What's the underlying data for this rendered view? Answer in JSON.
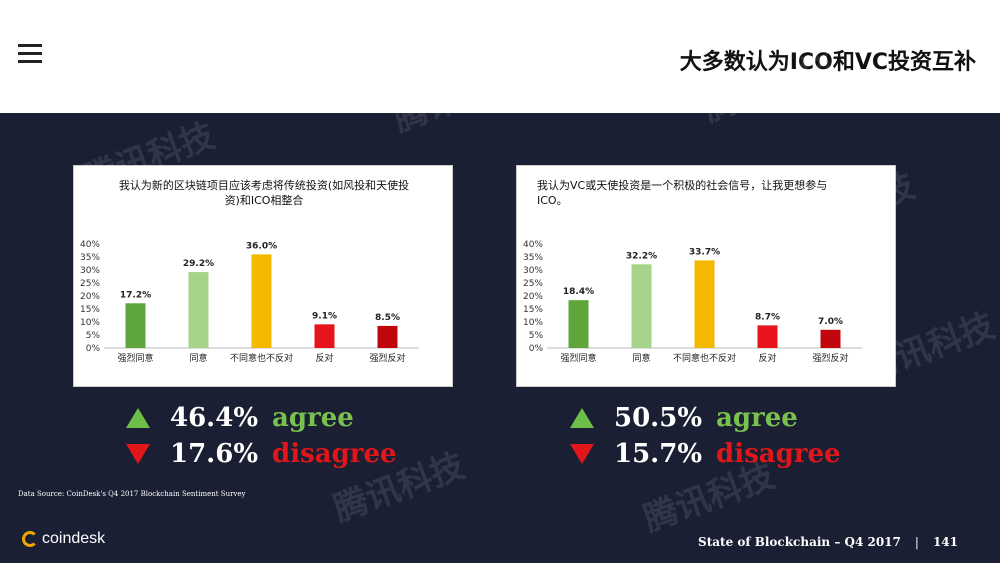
{
  "header": {
    "menu_icon": "menu-icon",
    "title": "大多数认为ICO和VC投资互补"
  },
  "chart_data": [
    {
      "type": "bar",
      "title": "我认为新的区块链项目应该考虑将传统投资(如风投和天使投资)和ICO相整合",
      "categories": [
        "强烈同意",
        "同意",
        "不同意也不反对",
        "反对",
        "强烈反对"
      ],
      "values": [
        17.2,
        29.2,
        36.0,
        9.1,
        8.5
      ],
      "value_labels": [
        "17.2%",
        "29.2%",
        "36.0%",
        "9.1%",
        "8.5%"
      ],
      "colors": [
        "#5ea53b",
        "#a6d38a",
        "#f5b800",
        "#e8141b",
        "#c0060c"
      ],
      "yticks": [
        "0%",
        "5%",
        "10%",
        "15%",
        "20%",
        "25%",
        "30%",
        "35%",
        "40%"
      ],
      "ylim": [
        0,
        40
      ],
      "grid": false
    },
    {
      "type": "bar",
      "title": "我认为VC或天使投资是一个积极的社会信号，让我更想参与ICO。",
      "categories": [
        "强烈同意",
        "同意",
        "不同意也不反对",
        "反对",
        "强烈反对"
      ],
      "values": [
        18.4,
        32.2,
        33.7,
        8.7,
        7.0
      ],
      "value_labels": [
        "18.4%",
        "32.2%",
        "33.7%",
        "8.7%",
        "7.0%"
      ],
      "colors": [
        "#5ea53b",
        "#a6d38a",
        "#f5b800",
        "#e8141b",
        "#c0060c"
      ],
      "yticks": [
        "0%",
        "5%",
        "10%",
        "15%",
        "20%",
        "25%",
        "30%",
        "35%",
        "40%"
      ],
      "ylim": [
        0,
        40
      ],
      "grid": false
    }
  ],
  "summary": [
    {
      "agree_pct": "46.4%",
      "agree_label": "agree",
      "disagree_pct": "17.6%",
      "disagree_label": "disagree"
    },
    {
      "agree_pct": "50.5%",
      "agree_label": "agree",
      "disagree_pct": "15.7%",
      "disagree_label": "disagree"
    }
  ],
  "source": "Data Source: CoinDesk's Q4 2017 Blockchain Sentiment Survey",
  "logo_text": "coindesk",
  "footer": {
    "title": "State of Blockchain – Q4 2017",
    "separator": "|",
    "page": "141"
  },
  "watermark_text": "腾讯科技",
  "colors": {
    "background": "#1a1f33",
    "agree": "#79c14e",
    "disagree": "#e0161b"
  }
}
